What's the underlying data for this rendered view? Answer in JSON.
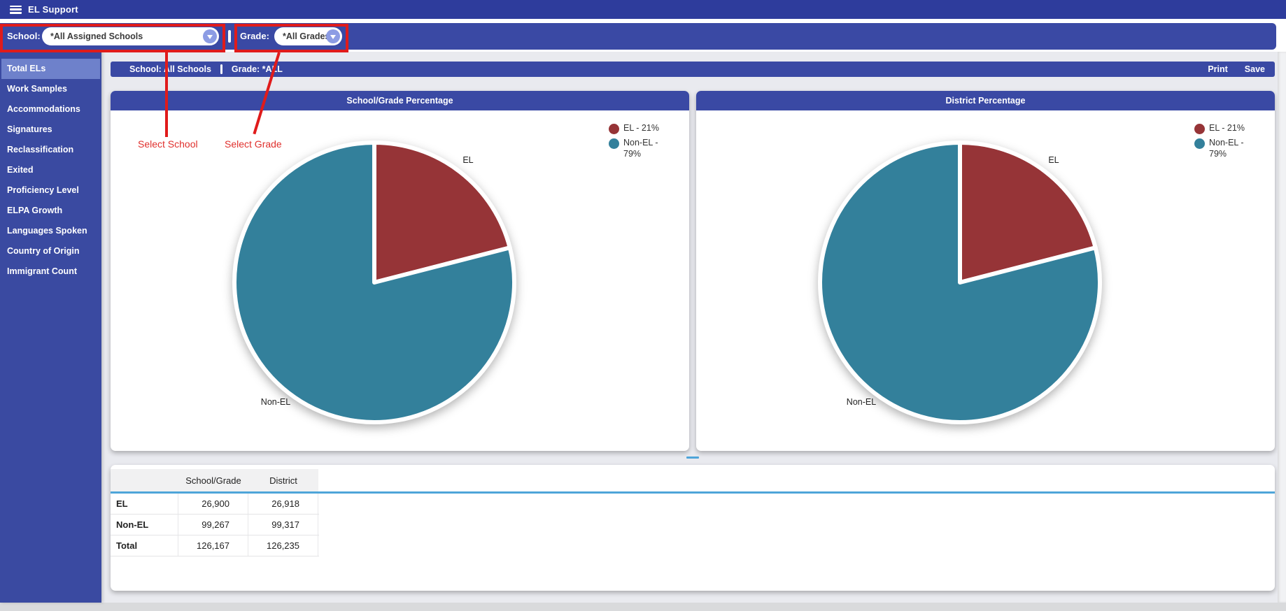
{
  "app": {
    "title": "EL Support"
  },
  "filters": {
    "school": {
      "label": "School:",
      "value": "*All Assigned Schools"
    },
    "grade": {
      "label": "Grade:",
      "value": "*All Grades"
    },
    "annotations": {
      "school": "Select School",
      "grade": "Select Grade"
    }
  },
  "sidebar": {
    "items": [
      {
        "label": "Total ELs",
        "selected": true
      },
      {
        "label": "Work Samples",
        "selected": false
      },
      {
        "label": "Accommodations",
        "selected": false
      },
      {
        "label": "Signatures",
        "selected": false
      },
      {
        "label": "Reclassification",
        "selected": false
      },
      {
        "label": "Exited",
        "selected": false
      },
      {
        "label": "Proficiency Level",
        "selected": false
      },
      {
        "label": "ELPA Growth",
        "selected": false
      },
      {
        "label": "Languages Spoken",
        "selected": false
      },
      {
        "label": "Country of Origin",
        "selected": false
      },
      {
        "label": "Immigrant Count",
        "selected": false
      }
    ]
  },
  "content_header": {
    "school": "School: All Schools",
    "grade": "Grade: *ALL",
    "print_label": "Print",
    "save_label": "Save"
  },
  "chart_data": [
    {
      "type": "pie",
      "title": "School/Grade Percentage",
      "slices": [
        {
          "label": "EL",
          "pct": 21,
          "color": "#963437"
        },
        {
          "label": "Non-EL",
          "pct": 79,
          "color": "#33809b"
        }
      ],
      "legend_position": "top-right",
      "start_angle_deg": 0,
      "direction": "clockwise"
    },
    {
      "type": "pie",
      "title": "District Percentage",
      "slices": [
        {
          "label": "EL",
          "pct": 21,
          "color": "#963437"
        },
        {
          "label": "Non-EL",
          "pct": 79,
          "color": "#33809b"
        }
      ],
      "legend_position": "top-right",
      "start_angle_deg": 0,
      "direction": "clockwise"
    }
  ],
  "table": {
    "headers": [
      "",
      "School/Grade",
      "District"
    ],
    "rows": [
      [
        "EL",
        "26,900",
        "26,918"
      ],
      [
        "Non-EL",
        "99,267",
        "99,317"
      ],
      [
        "Total",
        "126,167",
        "126,235"
      ]
    ]
  },
  "colors": {
    "topbar": "#2e3c9c",
    "bars": "#3a49a4",
    "sidebar": "#3a4aa1",
    "sidebar_selected": "#6e81cb",
    "annotation_red": "#e01b1b",
    "pie_el": "#963437",
    "pie_nonel": "#33809b",
    "table_rule_blue": "#4ea5d9",
    "main_bg": "#e9eaef"
  }
}
